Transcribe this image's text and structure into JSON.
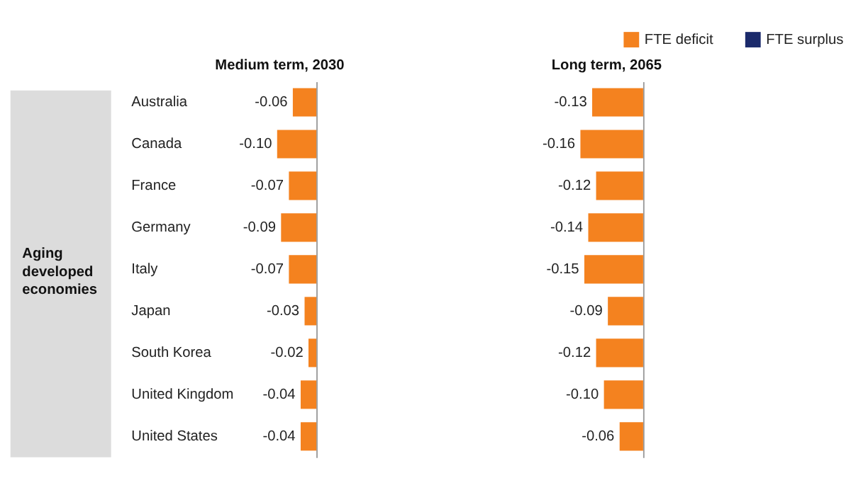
{
  "chart_data": [
    {
      "type": "bar",
      "orientation": "horizontal",
      "title": "Medium term, 2030",
      "categories": [
        "Australia",
        "Canada",
        "France",
        "Germany",
        "Italy",
        "Japan",
        "South Korea",
        "United Kingdom",
        "United States"
      ],
      "series": [
        {
          "color": "#f4821f",
          "values": [
            -0.06,
            -0.1,
            -0.07,
            -0.09,
            -0.07,
            -0.03,
            -0.02,
            -0.04,
            -0.04
          ],
          "value_labels": [
            "-0.06",
            "-0.10",
            "-0.07",
            "-0.09",
            "-0.07",
            "-0.03",
            "-0.02",
            "-0.04",
            "-0.04"
          ]
        },
        {
          "color": "#1b2a6b",
          "values": [
            null,
            null,
            null,
            null,
            null,
            null,
            null,
            null,
            null
          ]
        }
      ],
      "tick_labels": "y",
      "annotations": [
        "Aging developed economies"
      ]
    },
    {
      "type": "bar",
      "orientation": "horizontal",
      "title": "Long term, 2065",
      "categories": [
        null,
        null,
        null,
        null,
        null,
        null,
        null,
        null,
        null
      ],
      "series": [
        {
          "name": "FTE deficit",
          "color": "#f4821f",
          "values": [
            -0.13,
            -0.16,
            -0.12,
            -0.14,
            -0.15,
            -0.09,
            -0.12,
            -0.1,
            -0.06
          ],
          "value_labels": [
            "-0.13",
            "-0.16",
            "-0.12",
            "-0.14",
            "-0.15",
            "-0.09",
            "-0.12",
            "-0.10",
            "-0.06"
          ]
        },
        {
          "name": "FTE surplus",
          "color": "#1b2a6b",
          "values": [
            null,
            null,
            null,
            null,
            null,
            null,
            null,
            null,
            null
          ]
        }
      ],
      "tick_labels": false,
      "legend": "top right"
    }
  ]
}
